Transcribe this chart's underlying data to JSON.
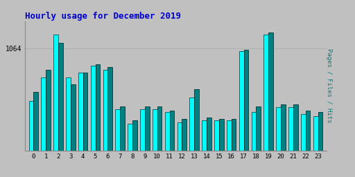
{
  "title": "Hourly usage for December 2019",
  "title_color": "#0000cc",
  "title_fontsize": 9,
  "ylabel_right": "Pages / Files / Hits",
  "background_color": "#c0c0c0",
  "plot_bg_color": "#c0c0c0",
  "hours": [
    0,
    1,
    2,
    3,
    4,
    5,
    6,
    7,
    8,
    9,
    10,
    11,
    12,
    13,
    14,
    15,
    16,
    17,
    18,
    19,
    20,
    21,
    22,
    23
  ],
  "pages": [
    985,
    1020,
    1085,
    1020,
    1028,
    1038,
    1032,
    972,
    950,
    972,
    972,
    968,
    952,
    990,
    955,
    955,
    955,
    1060,
    968,
    1085,
    975,
    975,
    965,
    962
  ],
  "hits": [
    998,
    1032,
    1072,
    1010,
    1028,
    1040,
    1036,
    976,
    955,
    976,
    976,
    970,
    958,
    1002,
    960,
    958,
    958,
    1062,
    976,
    1088,
    980,
    980,
    970,
    968
  ],
  "bar1_color": "#00ffff",
  "bar2_color": "#008080",
  "bar1_edge": "#005555",
  "bar2_edge": "#003333",
  "grid_color": "#aaaaaa",
  "ylim_min": 910,
  "ylim_max": 1105,
  "ytick_value": 1064,
  "bar_width": 0.38
}
